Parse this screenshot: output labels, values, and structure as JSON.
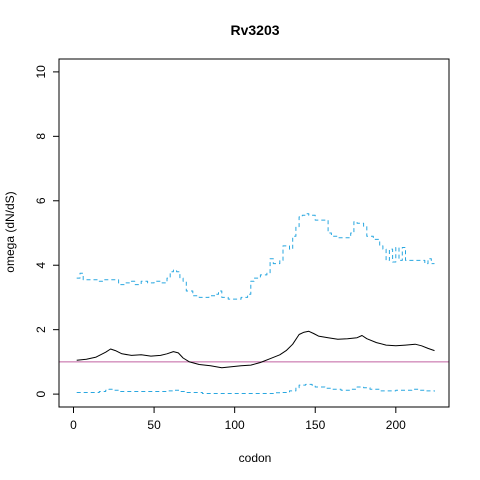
{
  "chart_data": {
    "type": "line",
    "title": "Rv3203",
    "xlabel": "codon",
    "ylabel": "omega (dN/dS)",
    "xlim": [
      -9,
      233
    ],
    "ylim": [
      -0.4,
      10.4
    ],
    "xticks": [
      0,
      50,
      100,
      150,
      200
    ],
    "yticks": [
      0,
      2,
      4,
      6,
      8,
      10
    ],
    "grid": false,
    "reference_line": {
      "y": 1,
      "color": "#c060a0"
    },
    "series": [
      {
        "style": "solid",
        "color": "#000000",
        "stepped": false,
        "points": [
          [
            2,
            1.05
          ],
          [
            8,
            1.08
          ],
          [
            14,
            1.15
          ],
          [
            20,
            1.3
          ],
          [
            23,
            1.4
          ],
          [
            26,
            1.35
          ],
          [
            30,
            1.25
          ],
          [
            36,
            1.2
          ],
          [
            42,
            1.22
          ],
          [
            48,
            1.18
          ],
          [
            54,
            1.2
          ],
          [
            58,
            1.25
          ],
          [
            62,
            1.32
          ],
          [
            65,
            1.28
          ],
          [
            68,
            1.12
          ],
          [
            72,
            1.0
          ],
          [
            78,
            0.92
          ],
          [
            85,
            0.88
          ],
          [
            92,
            0.82
          ],
          [
            98,
            0.85
          ],
          [
            104,
            0.88
          ],
          [
            110,
            0.9
          ],
          [
            116,
            0.98
          ],
          [
            122,
            1.1
          ],
          [
            128,
            1.22
          ],
          [
            132,
            1.35
          ],
          [
            136,
            1.55
          ],
          [
            140,
            1.85
          ],
          [
            143,
            1.92
          ],
          [
            146,
            1.95
          ],
          [
            149,
            1.88
          ],
          [
            152,
            1.8
          ],
          [
            158,
            1.75
          ],
          [
            164,
            1.7
          ],
          [
            170,
            1.72
          ],
          [
            176,
            1.75
          ],
          [
            179,
            1.82
          ],
          [
            182,
            1.72
          ],
          [
            188,
            1.6
          ],
          [
            194,
            1.52
          ],
          [
            200,
            1.5
          ],
          [
            206,
            1.52
          ],
          [
            212,
            1.55
          ],
          [
            216,
            1.5
          ],
          [
            220,
            1.42
          ],
          [
            224,
            1.35
          ]
        ]
      },
      {
        "style": "dashed",
        "color": "#29a7e0",
        "stepped": true,
        "points": [
          [
            2,
            3.6
          ],
          [
            4,
            3.75
          ],
          [
            6,
            3.55
          ],
          [
            14,
            3.55
          ],
          [
            16,
            3.5
          ],
          [
            18,
            3.55
          ],
          [
            26,
            3.55
          ],
          [
            28,
            3.4
          ],
          [
            32,
            3.45
          ],
          [
            36,
            3.5
          ],
          [
            38,
            3.4
          ],
          [
            42,
            3.5
          ],
          [
            46,
            3.45
          ],
          [
            50,
            3.5
          ],
          [
            54,
            3.45
          ],
          [
            58,
            3.6
          ],
          [
            60,
            3.8
          ],
          [
            62,
            3.85
          ],
          [
            64,
            3.8
          ],
          [
            66,
            3.6
          ],
          [
            68,
            3.5
          ],
          [
            70,
            3.2
          ],
          [
            74,
            3.05
          ],
          [
            78,
            3.0
          ],
          [
            84,
            3.05
          ],
          [
            88,
            3.1
          ],
          [
            90,
            3.2
          ],
          [
            92,
            3.0
          ],
          [
            96,
            2.95
          ],
          [
            100,
            2.95
          ],
          [
            104,
            3.0
          ],
          [
            108,
            3.1
          ],
          [
            110,
            3.5
          ],
          [
            112,
            3.6
          ],
          [
            116,
            3.7
          ],
          [
            120,
            3.75
          ],
          [
            122,
            4.2
          ],
          [
            124,
            4.05
          ],
          [
            128,
            4.15
          ],
          [
            130,
            4.6
          ],
          [
            134,
            4.5
          ],
          [
            136,
            4.9
          ],
          [
            138,
            5.2
          ],
          [
            140,
            5.5
          ],
          [
            142,
            5.55
          ],
          [
            144,
            5.6
          ],
          [
            146,
            5.55
          ],
          [
            150,
            5.4
          ],
          [
            158,
            5.0
          ],
          [
            160,
            4.9
          ],
          [
            164,
            4.85
          ],
          [
            168,
            4.85
          ],
          [
            172,
            5.0
          ],
          [
            174,
            5.35
          ],
          [
            176,
            5.3
          ],
          [
            180,
            5.2
          ],
          [
            182,
            4.9
          ],
          [
            186,
            4.8
          ],
          [
            190,
            4.6
          ],
          [
            192,
            4.5
          ],
          [
            194,
            4.15
          ],
          [
            196,
            4.5
          ],
          [
            198,
            4.1
          ],
          [
            200,
            4.55
          ],
          [
            202,
            4.15
          ],
          [
            204,
            4.55
          ],
          [
            206,
            4.15
          ],
          [
            210,
            4.15
          ],
          [
            214,
            4.15
          ],
          [
            218,
            4.05
          ],
          [
            220,
            4.2
          ],
          [
            222,
            4.05
          ],
          [
            224,
            4.05
          ]
        ]
      },
      {
        "style": "dashed",
        "color": "#29a7e0",
        "stepped": true,
        "points": [
          [
            2,
            0.05
          ],
          [
            10,
            0.05
          ],
          [
            16,
            0.08
          ],
          [
            20,
            0.12
          ],
          [
            22,
            0.15
          ],
          [
            24,
            0.12
          ],
          [
            28,
            0.08
          ],
          [
            36,
            0.08
          ],
          [
            44,
            0.08
          ],
          [
            52,
            0.08
          ],
          [
            58,
            0.1
          ],
          [
            62,
            0.12
          ],
          [
            66,
            0.08
          ],
          [
            70,
            0.05
          ],
          [
            80,
            0.02
          ],
          [
            92,
            0.02
          ],
          [
            104,
            0.02
          ],
          [
            116,
            0.02
          ],
          [
            124,
            0.04
          ],
          [
            130,
            0.05
          ],
          [
            134,
            0.1
          ],
          [
            138,
            0.2
          ],
          [
            140,
            0.28
          ],
          [
            144,
            0.3
          ],
          [
            148,
            0.28
          ],
          [
            150,
            0.22
          ],
          [
            156,
            0.18
          ],
          [
            160,
            0.15
          ],
          [
            166,
            0.12
          ],
          [
            172,
            0.15
          ],
          [
            176,
            0.22
          ],
          [
            180,
            0.2
          ],
          [
            184,
            0.15
          ],
          [
            190,
            0.1
          ],
          [
            196,
            0.1
          ],
          [
            200,
            0.12
          ],
          [
            206,
            0.12
          ],
          [
            210,
            0.15
          ],
          [
            214,
            0.12
          ],
          [
            218,
            0.1
          ],
          [
            224,
            0.08
          ]
        ]
      }
    ]
  }
}
